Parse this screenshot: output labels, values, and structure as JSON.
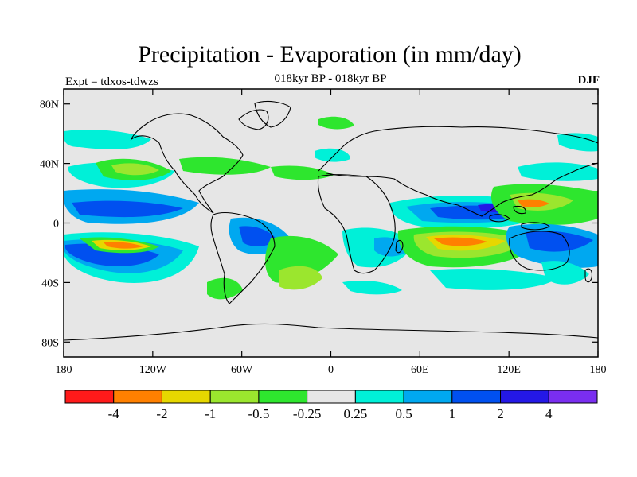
{
  "header": {
    "title": "Precipitation - Evaporation (in mm/day)",
    "subtitle": "018kyr BP - 018kyr BP",
    "experiment": "Expt = tdxos-tdwzs",
    "season": "DJF"
  },
  "axes": {
    "lat_ticks": [
      {
        "value": 80,
        "label": "80N"
      },
      {
        "value": 40,
        "label": "40N"
      },
      {
        "value": 0,
        "label": "0"
      },
      {
        "value": -40,
        "label": "40S"
      },
      {
        "value": -80,
        "label": "80S"
      }
    ],
    "lon_ticks": [
      {
        "value": -180,
        "label": "180"
      },
      {
        "value": -120,
        "label": "120W"
      },
      {
        "value": -60,
        "label": "60W"
      },
      {
        "value": 0,
        "label": "0"
      },
      {
        "value": 60,
        "label": "60E"
      },
      {
        "value": 120,
        "label": "120E"
      },
      {
        "value": 180,
        "label": "180"
      }
    ],
    "lon_range": [
      -180,
      180
    ],
    "lat_range": [
      -90,
      90
    ]
  },
  "colorbar": {
    "colors": [
      "#ff1a1a",
      "#ff8000",
      "#e6d700",
      "#9be62e",
      "#2ee62e",
      "#e6e6e6",
      "#00f0d8",
      "#00a8f0",
      "#0050f0",
      "#2418e6",
      "#7a2ef0"
    ],
    "labels": [
      "-4",
      "-2",
      "-1",
      "-0.5",
      "-0.25",
      "0.25",
      "0.5",
      "1",
      "2",
      "4"
    ]
  },
  "colors": {
    "ocean_neutral": "#e6e6e6",
    "coast": "#000000"
  }
}
